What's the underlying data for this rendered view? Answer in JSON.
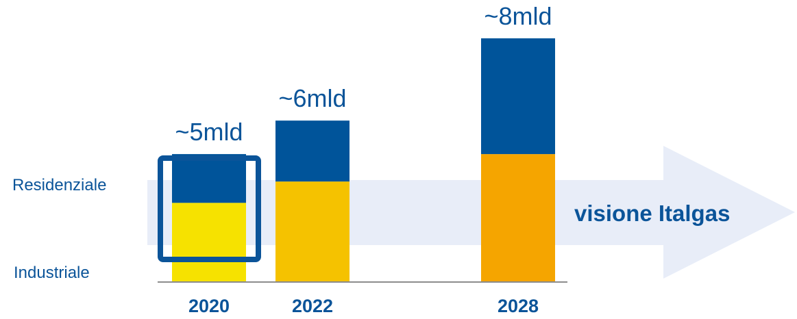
{
  "chart_data": {
    "type": "bar",
    "stacked": true,
    "categories": [
      "2020",
      "2022",
      "2028"
    ],
    "series": [
      {
        "name": "Industriale",
        "values": [
          2.6,
          3.3,
          4.2
        ],
        "colors": [
          "#F6E200",
          "#F5C200",
          "#F5A500"
        ]
      },
      {
        "name": "Residenziale",
        "values": [
          1.6,
          2.0,
          3.8
        ],
        "colors": [
          "#00549A",
          "#00549A",
          "#00549A"
        ]
      }
    ],
    "totals_labels": [
      "~5mld",
      "~6mld",
      "~8mld"
    ],
    "row_labels": [
      "Residenziale",
      "Industriale"
    ],
    "arrow_label": "visione Italgas",
    "highlighted_category": "2020",
    "colors": {
      "arrow": "#E8EDF8",
      "text": "#0B5499",
      "axis": "#8C8C8C",
      "highlight": "#0B5499"
    }
  }
}
